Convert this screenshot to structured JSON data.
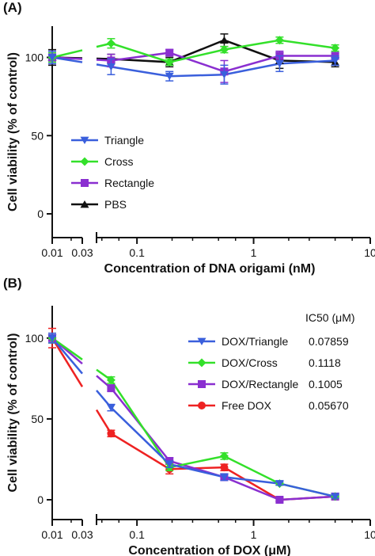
{
  "colors": {
    "triangle": "#3a5fdc",
    "cross": "#33e02a",
    "rectangle": "#8a2fd0",
    "pbs": "#111111",
    "free_dox": "#ee2222"
  },
  "chart_data": [
    {
      "panel_label": "(A)",
      "type": "line",
      "xscale": "log",
      "xlim": [
        0.01,
        10
      ],
      "ylim": [
        0,
        120
      ],
      "axis_break": [
        0.03,
        0.045
      ],
      "xticks": [
        0.01,
        0.03,
        0.1,
        1,
        10
      ],
      "xtick_labels": [
        "0.01",
        "0.03",
        "0.1",
        "1",
        "10"
      ],
      "yticks": [
        0,
        50,
        100
      ],
      "ytick_labels": [
        "0",
        "50",
        "100"
      ],
      "xlabel": "Concentration of DNA origami (nM)",
      "ylabel": "Cell viability (% of control)",
      "legend_position": "bottom-left",
      "legend_title": "",
      "x": [
        0.01,
        0.06,
        0.19,
        0.56,
        1.67,
        5.0
      ],
      "series": [
        {
          "name": "Triangle",
          "marker": "triangle-down",
          "color_key": "triangle",
          "values": [
            100,
            94,
            88,
            89,
            96,
            98
          ],
          "errors": [
            4,
            5,
            3,
            6,
            5,
            3
          ]
        },
        {
          "name": "Cross",
          "marker": "diamond",
          "color_key": "cross",
          "values": [
            100,
            109,
            97,
            105,
            111,
            106
          ],
          "errors": [
            3,
            3,
            2,
            2,
            2,
            2
          ]
        },
        {
          "name": "Rectangle",
          "marker": "square",
          "color_key": "rectangle",
          "values": [
            100,
            98,
            103,
            91,
            101,
            101
          ],
          "errors": [
            4,
            4,
            2,
            7,
            3,
            2
          ]
        },
        {
          "name": "PBS",
          "marker": "triangle-up",
          "color_key": "pbs",
          "values": [
            100,
            99,
            97,
            111,
            98,
            97
          ],
          "errors": [
            5,
            3,
            3,
            4,
            5,
            3
          ]
        }
      ]
    },
    {
      "panel_label": "(B)",
      "type": "line",
      "xscale": "log",
      "xlim": [
        0.01,
        10
      ],
      "ylim": [
        0,
        120
      ],
      "axis_break": [
        0.03,
        0.045
      ],
      "xticks": [
        0.01,
        0.03,
        0.1,
        1,
        10
      ],
      "xtick_labels": [
        "0.01",
        "0.03",
        "0.1",
        "1",
        "10"
      ],
      "yticks": [
        0,
        50,
        100
      ],
      "ytick_labels": [
        "0",
        "50",
        "100"
      ],
      "xlabel": "Concentration of DOX (μM)",
      "ylabel": "Cell viability (% of control)",
      "legend_position": "top-right",
      "legend_title": "IC50 (μM)",
      "x": [
        0.01,
        0.06,
        0.19,
        0.56,
        1.67,
        5.0
      ],
      "series": [
        {
          "name": "DOX/Triangle",
          "ic50": "0.07859",
          "marker": "triangle-down",
          "color_key": "triangle",
          "values": [
            100,
            57,
            22,
            14,
            10,
            2
          ],
          "errors": [
            3,
            2,
            2,
            2,
            1,
            1
          ]
        },
        {
          "name": "DOX/Cross",
          "ic50": "0.1118",
          "marker": "diamond",
          "color_key": "cross",
          "values": [
            100,
            74,
            20,
            27,
            10,
            2
          ],
          "errors": [
            3,
            2,
            2,
            2,
            1,
            1
          ]
        },
        {
          "name": "DOX/Rectangle",
          "ic50": "0.1005",
          "marker": "square",
          "color_key": "rectangle",
          "values": [
            100,
            69,
            24,
            14,
            0,
            2
          ],
          "errors": [
            3,
            2,
            2,
            2,
            1,
            1
          ]
        },
        {
          "name": "Free DOX",
          "ic50": "0.05670",
          "marker": "circle",
          "color_key": "free_dox",
          "values": [
            100,
            41,
            19,
            20,
            0,
            2
          ],
          "errors": [
            6,
            2,
            3,
            2,
            1,
            2
          ]
        }
      ]
    }
  ]
}
